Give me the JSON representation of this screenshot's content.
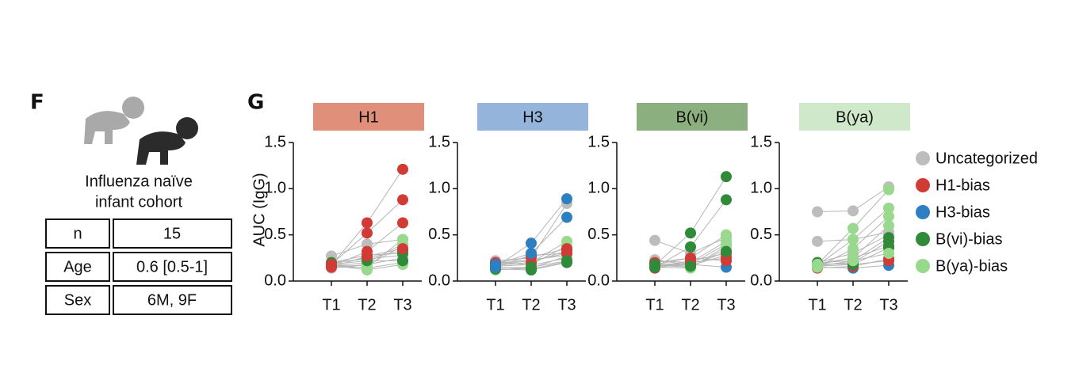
{
  "panel_f": {
    "label": "F",
    "caption": [
      "Influenza naïve",
      "infant cohort"
    ],
    "table": {
      "rows": [
        [
          "n",
          "15"
        ],
        [
          "Age",
          "0.6 [0.5-1]"
        ],
        [
          "Sex",
          "6M, 9F"
        ]
      ]
    }
  },
  "panel_g": {
    "label": "G",
    "ylabel": "AUC (IgG)"
  },
  "legend": {
    "names": [
      "Uncategorized",
      "H1-bias",
      "H3-bias",
      "B(vi)-bias",
      "B(ya)-bias"
    ],
    "colors": [
      "#bdbdbd",
      "#d13b36",
      "#2e7fbf",
      "#2f8a3a",
      "#98d98e"
    ]
  },
  "chart_data": [
    {
      "type": "line",
      "title": "H1",
      "title_color": "#e0907a",
      "categories": [
        "T1",
        "T2",
        "T3"
      ],
      "ylim": [
        0,
        1.5
      ],
      "yticks": [
        {
          "value": 0,
          "label": "0.0"
        },
        0.5,
        {
          "value": 1,
          "label": "1.0"
        },
        1.5
      ],
      "series": [
        {
          "color": "#bdbdbd",
          "values": [
            0.27,
            0.4,
            0.45
          ]
        },
        {
          "color": "#bdbdbd",
          "values": [
            0.14,
            0.18,
            0.25
          ]
        },
        {
          "color": "#bdbdbd",
          "values": [
            0.2,
            0.24,
            0.28
          ]
        },
        {
          "color": "#98d98e",
          "values": [
            0.15,
            0.15,
            0.45
          ]
        },
        {
          "color": "#98d98e",
          "values": [
            0.16,
            0.2,
            0.4
          ]
        },
        {
          "color": "#98d98e",
          "values": [
            0.17,
            0.12,
            0.18
          ]
        },
        {
          "color": "#98d98e",
          "values": [
            0.18,
            0.14,
            0.2
          ]
        },
        {
          "color": "#98d98e",
          "values": [
            0.16,
            0.17,
            0.38
          ]
        },
        {
          "color": "#2f8a3a",
          "values": [
            0.19,
            0.25,
            0.33
          ]
        },
        {
          "color": "#2f8a3a",
          "values": [
            0.18,
            0.22,
            0.22
          ]
        },
        {
          "color": "#2f8a3a",
          "values": [
            0.2,
            0.28,
            0.3
          ]
        },
        {
          "color": "#d13b36",
          "values": [
            0.15,
            0.27,
            0.35
          ]
        },
        {
          "color": "#d13b36",
          "values": [
            0.16,
            0.32,
            0.63
          ]
        },
        {
          "color": "#d13b36",
          "values": [
            0.18,
            0.52,
            0.88
          ]
        },
        {
          "color": "#d13b36",
          "values": [
            0.17,
            0.63,
            1.21
          ]
        }
      ]
    },
    {
      "type": "line",
      "title": "H3",
      "title_color": "#94b4dc",
      "categories": [
        "T1",
        "T2",
        "T3"
      ],
      "ylim": [
        0,
        1.5
      ],
      "yticks": [
        {
          "value": 0,
          "label": "0.0"
        },
        0.5,
        {
          "value": 1,
          "label": "1.0"
        },
        1.5
      ],
      "series": [
        {
          "color": "#bdbdbd",
          "values": [
            0.22,
            0.25,
            0.84
          ]
        },
        {
          "color": "#bdbdbd",
          "values": [
            0.21,
            0.17,
            0.25
          ]
        },
        {
          "color": "#bdbdbd",
          "values": [
            0.19,
            0.23,
            0.28
          ]
        },
        {
          "color": "#98d98e",
          "values": [
            0.17,
            0.2,
            0.43
          ]
        },
        {
          "color": "#98d98e",
          "values": [
            0.16,
            0.18,
            0.38
          ]
        },
        {
          "color": "#98d98e",
          "values": [
            0.18,
            0.22,
            0.3
          ]
        },
        {
          "color": "#98d98e",
          "values": [
            0.12,
            0.14,
            0.27
          ]
        },
        {
          "color": "#d13b36",
          "values": [
            0.2,
            0.26,
            0.35
          ]
        },
        {
          "color": "#d13b36",
          "values": [
            0.15,
            0.28,
            0.3
          ]
        },
        {
          "color": "#d13b36",
          "values": [
            0.17,
            0.2,
            0.33
          ]
        },
        {
          "color": "#2f8a3a",
          "values": [
            0.13,
            0.12,
            0.2
          ]
        },
        {
          "color": "#2f8a3a",
          "values": [
            0.14,
            0.15,
            0.22
          ]
        },
        {
          "color": "#2f8a3a",
          "values": [
            0.15,
            0.13,
            0.21
          ]
        },
        {
          "color": "#2e7fbf",
          "values": [
            0.18,
            0.3,
            0.69
          ]
        },
        {
          "color": "#2e7fbf",
          "values": [
            0.15,
            0.41,
            0.89
          ]
        }
      ]
    },
    {
      "type": "line",
      "title": "B(vi)",
      "title_color": "#8caf7f",
      "categories": [
        "T1",
        "T2",
        "T3"
      ],
      "ylim": [
        0,
        1.5
      ],
      "yticks": [
        {
          "value": 0,
          "label": "0.0"
        },
        0.5,
        {
          "value": 1,
          "label": "1.0"
        },
        1.5
      ],
      "series": [
        {
          "color": "#bdbdbd",
          "values": [
            0.44,
            0.3,
            0.47
          ]
        },
        {
          "color": "#bdbdbd",
          "values": [
            0.22,
            0.2,
            0.25
          ]
        },
        {
          "color": "#bdbdbd",
          "values": [
            0.23,
            0.17,
            0.28
          ]
        },
        {
          "color": "#98d98e",
          "values": [
            0.18,
            0.25,
            0.5
          ]
        },
        {
          "color": "#98d98e",
          "values": [
            0.16,
            0.2,
            0.43
          ]
        },
        {
          "color": "#98d98e",
          "values": [
            0.17,
            0.15,
            0.35
          ]
        },
        {
          "color": "#98d98e",
          "values": [
            0.19,
            0.18,
            0.4
          ]
        },
        {
          "color": "#98d98e",
          "values": [
            0.15,
            0.14,
            0.38
          ]
        },
        {
          "color": "#2e7fbf",
          "values": [
            0.16,
            0.18,
            0.15
          ]
        },
        {
          "color": "#d13b36",
          "values": [
            0.15,
            0.22,
            0.3
          ]
        },
        {
          "color": "#d13b36",
          "values": [
            0.2,
            0.25,
            0.22
          ]
        },
        {
          "color": "#d13b36",
          "values": [
            0.14,
            0.2,
            0.25
          ]
        },
        {
          "color": "#2f8a3a",
          "values": [
            0.18,
            0.16,
            0.32
          ]
        },
        {
          "color": "#2f8a3a",
          "values": [
            0.15,
            0.37,
            0.88
          ]
        },
        {
          "color": "#2f8a3a",
          "values": [
            0.17,
            0.52,
            1.13
          ]
        }
      ]
    },
    {
      "type": "line",
      "title": "B(ya)",
      "title_color": "#cfe8c9",
      "categories": [
        "T1",
        "T2",
        "T3"
      ],
      "ylim": [
        0,
        1.5
      ],
      "yticks": [
        {
          "value": 0,
          "label": "0.0"
        },
        0.5,
        {
          "value": 1,
          "label": "1.0"
        },
        1.5
      ],
      "series": [
        {
          "color": "#bdbdbd",
          "values": [
            0.75,
            0.76,
            1.02
          ]
        },
        {
          "color": "#bdbdbd",
          "values": [
            0.43,
            0.45,
            0.53
          ]
        },
        {
          "color": "#bdbdbd",
          "values": [
            0.2,
            0.3,
            0.5
          ]
        },
        {
          "color": "#2e7fbf",
          "values": [
            0.15,
            0.14,
            0.17
          ]
        },
        {
          "color": "#d13b36",
          "values": [
            0.19,
            0.25,
            0.38
          ]
        },
        {
          "color": "#d13b36",
          "values": [
            0.16,
            0.18,
            0.22
          ]
        },
        {
          "color": "#d13b36",
          "values": [
            0.14,
            0.16,
            0.24
          ]
        },
        {
          "color": "#2f8a3a",
          "values": [
            0.2,
            0.22,
            0.47
          ]
        },
        {
          "color": "#2f8a3a",
          "values": [
            0.17,
            0.2,
            0.43
          ]
        },
        {
          "color": "#2f8a3a",
          "values": [
            0.19,
            0.18,
            0.36
          ]
        },
        {
          "color": "#98d98e",
          "values": [
            0.18,
            0.57,
            0.99
          ]
        },
        {
          "color": "#98d98e",
          "values": [
            0.17,
            0.45,
            0.79
          ]
        },
        {
          "color": "#98d98e",
          "values": [
            0.15,
            0.35,
            0.7
          ]
        },
        {
          "color": "#98d98e",
          "values": [
            0.18,
            0.25,
            0.6
          ]
        },
        {
          "color": "#98d98e",
          "values": [
            0.16,
            0.22,
            0.3
          ]
        }
      ]
    }
  ]
}
